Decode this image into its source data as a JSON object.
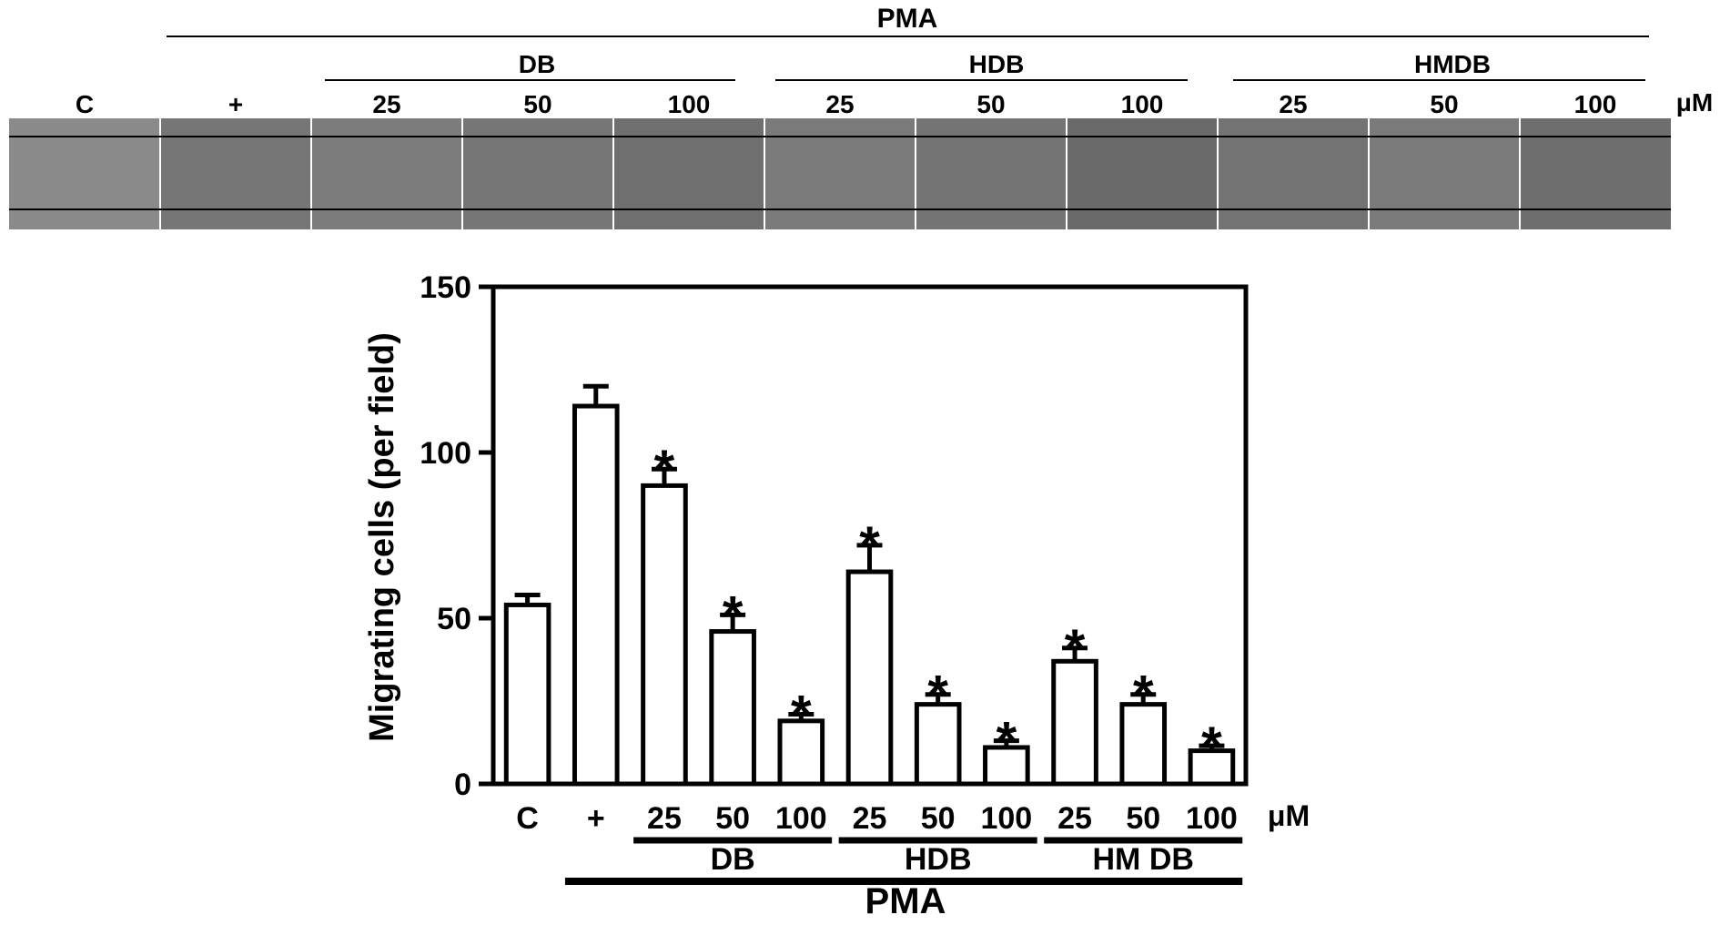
{
  "micrograph_panel": {
    "top_group_label": "PMA",
    "subgroup_labels": [
      "DB",
      "HDB",
      "HMDB"
    ],
    "lane_labels": [
      "C",
      "+",
      "25",
      "50",
      "100",
      "25",
      "50",
      "100",
      "25",
      "50",
      "100"
    ],
    "unit": "μM",
    "panel_shades": [
      "#8a8a8a",
      "#767676",
      "#7c7c7c",
      "#767676",
      "#6f6f6f",
      "#7a7a7a",
      "#747474",
      "#6a6a6a",
      "#737373",
      "#7a7a7a",
      "#6e6e6e"
    ]
  },
  "chart_data": {
    "type": "bar",
    "categories": [
      "C",
      "+",
      "25",
      "50",
      "100",
      "25",
      "50",
      "100",
      "25",
      "50",
      "100"
    ],
    "values": [
      54,
      114,
      90,
      46,
      19,
      64,
      24,
      11,
      37,
      24,
      10
    ],
    "errors": [
      3,
      6,
      5,
      5,
      2,
      8,
      3,
      2,
      4,
      3,
      1.5
    ],
    "significant": [
      false,
      false,
      true,
      true,
      true,
      true,
      true,
      true,
      true,
      true,
      true
    ],
    "significance_marker": "*",
    "ylabel": "Migrating cells (per field)",
    "ylim": [
      0,
      150
    ],
    "yticks": [
      0,
      50,
      100,
      150
    ],
    "unit_label": "μM",
    "group_labels": [
      "DB",
      "HDB",
      "HM DB"
    ],
    "outer_group_label": "PMA",
    "bar_color": "#ffffff",
    "edge_color": "#000000"
  }
}
